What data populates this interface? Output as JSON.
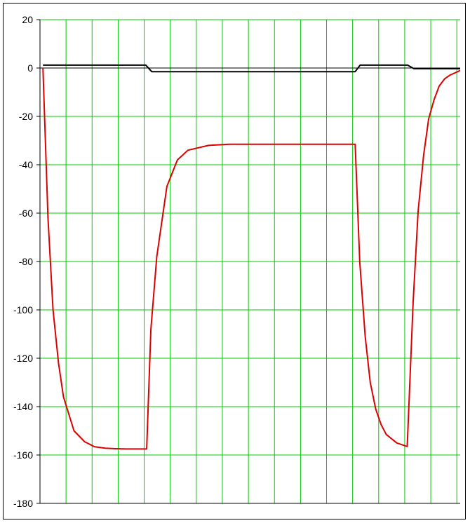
{
  "chart_data": {
    "type": "line",
    "title": "",
    "xlabel": "",
    "ylabel": "",
    "ylim": [
      -180,
      20
    ],
    "xlim": [
      0,
      100
    ],
    "y_ticks": [
      "20",
      "0",
      "-20",
      "-40",
      "-60",
      "-80",
      "-100",
      "-120",
      "-140",
      "-160",
      "-180"
    ],
    "y_tick_values": [
      20,
      0,
      -20,
      -40,
      -60,
      -80,
      -100,
      -120,
      -140,
      -160,
      -180
    ],
    "x_gridlines": [
      6.2,
      12.4,
      18.6,
      24.8,
      31.0,
      37.2,
      43.4,
      49.6,
      55.8,
      62.0,
      68.2,
      74.4,
      80.6,
      86.8,
      93.0,
      99.2
    ],
    "grid": {
      "horizontal": true,
      "vertical": true,
      "color": "#00cc00"
    },
    "legend": "none",
    "series": [
      {
        "color": "#000000",
        "x": [
          0.7,
          25.2,
          26.6,
          75.0,
          76.2,
          87.5,
          89.0,
          100
        ],
        "y": [
          1.2,
          1.2,
          -1.5,
          -1.5,
          1.2,
          1.2,
          -0.3,
          -0.3
        ]
      },
      {
        "color": "#dd0000",
        "x": [
          0.7,
          1.9,
          3.1,
          4.4,
          5.6,
          8.1,
          10.6,
          13.0,
          15.5,
          18.0,
          20.5,
          23.0,
          25.4,
          26.4,
          27.8,
          30.2,
          32.7,
          35.2,
          40.1,
          45.0,
          50.0,
          55.0,
          60.0,
          65.0,
          70.0,
          75.0,
          76.1,
          77.4,
          78.6,
          79.9,
          81.2,
          82.4,
          84.9,
          87.4,
          88.8,
          90.0,
          91.3,
          92.5,
          93.8,
          95.0,
          96.3,
          97.5,
          98.8,
          100
        ],
        "y": [
          0,
          -62,
          -100,
          -122,
          -136,
          -150,
          -154.5,
          -156.6,
          -157.2,
          -157.4,
          -157.5,
          -157.5,
          -157.5,
          -108,
          -78,
          -49,
          -38,
          -34,
          -32,
          -31.5,
          -31.5,
          -31.5,
          -31.5,
          -31.5,
          -31.5,
          -31.5,
          -80,
          -111,
          -130,
          -141,
          -147.5,
          -151.5,
          -155,
          -156.5,
          -97,
          -59,
          -36,
          -21,
          -13,
          -7.5,
          -4.5,
          -3,
          -2,
          -1
        ]
      }
    ]
  }
}
